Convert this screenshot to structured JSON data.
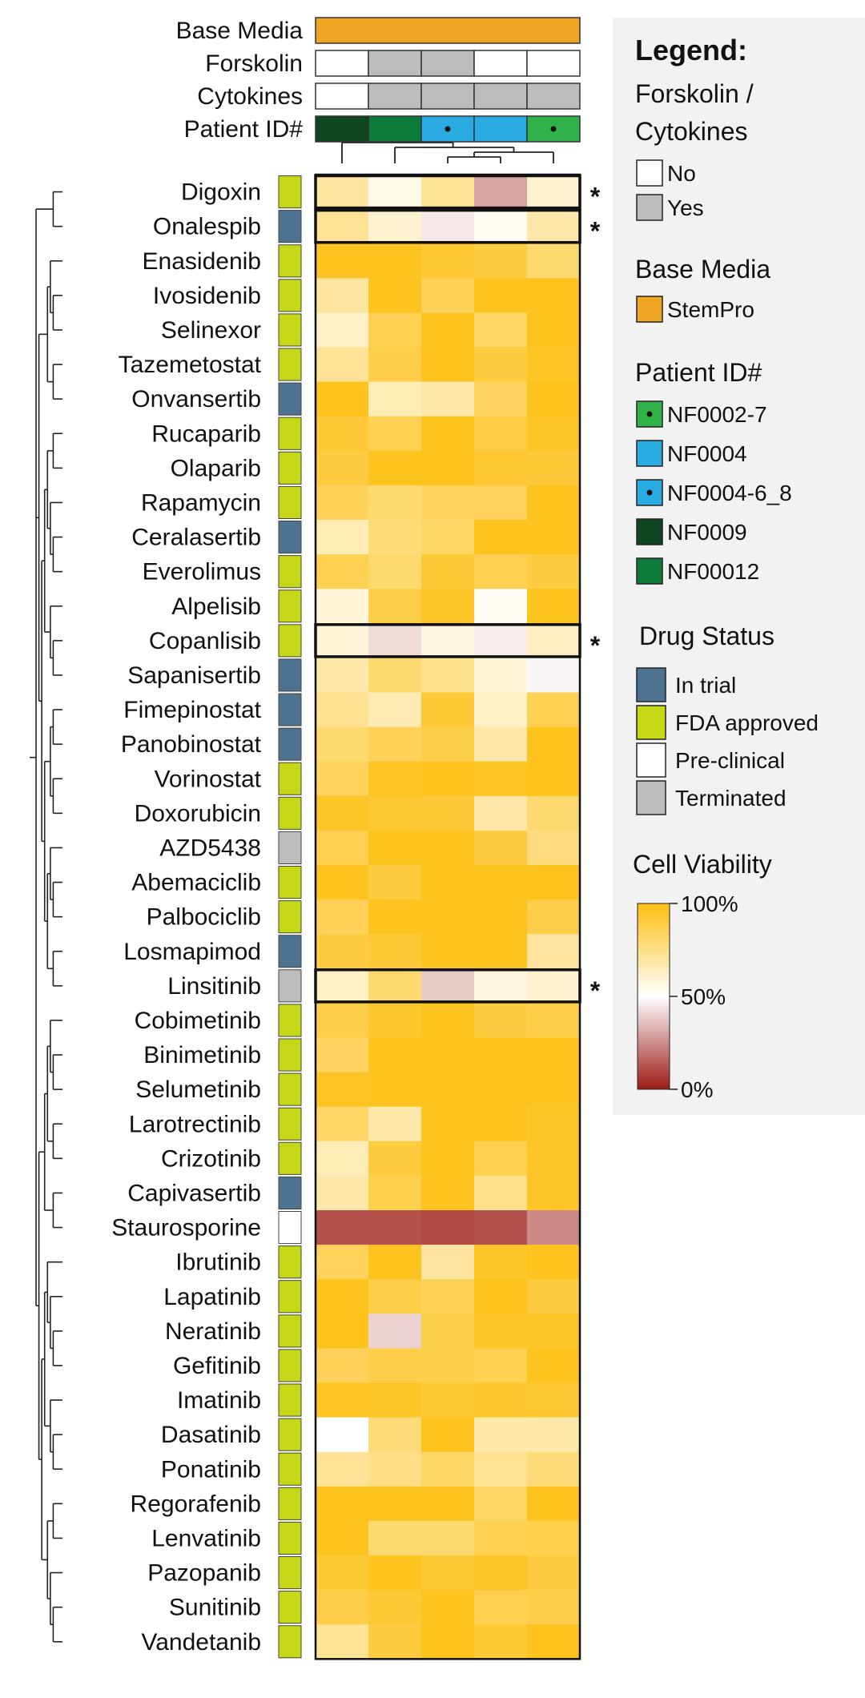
{
  "chart_data": {
    "type": "heatmap",
    "title": "",
    "color_scale": {
      "title": "Cell Viability",
      "ticks": [
        "100%",
        "50%",
        "0%"
      ],
      "stops": [
        {
          "v": 0,
          "color": "#9c1c16"
        },
        {
          "v": 50,
          "color": "#ffffff"
        },
        {
          "v": 100,
          "color": "#fdbf10"
        }
      ]
    },
    "annotation_rows": [
      {
        "label": "Base Media",
        "values": [
          "StemPro",
          "StemPro",
          "StemPro",
          "StemPro",
          "StemPro"
        ]
      },
      {
        "label": "Forskolin",
        "values": [
          "No",
          "Yes",
          "Yes",
          "No",
          "No"
        ]
      },
      {
        "label": "Cytokines",
        "values": [
          "No",
          "Yes",
          "Yes",
          "Yes",
          "Yes"
        ]
      },
      {
        "label": "Patient ID#",
        "values": [
          "NF0009",
          "NF00012",
          "NF0004-6_8",
          "NF0004",
          "NF0002-7"
        ]
      }
    ],
    "drugs": [
      "Digoxin",
      "Onalespib",
      "Enasidenib",
      "Ivosidenib",
      "Selinexor",
      "Tazemetostat",
      "Onvansertib",
      "Rucaparib",
      "Olaparib",
      "Rapamycin",
      "Ceralasertib",
      "Everolimus",
      "Alpelisib",
      "Copanlisib",
      "Sapanisertib",
      "Fimepinostat",
      "Panobinostat",
      "Vorinostat",
      "Doxorubicin",
      "AZD5438",
      "Abemaciclib",
      "Palbociclib",
      "Losmapimod",
      "Linsitinib",
      "Cobimetinib",
      "Binimetinib",
      "Selumetinib",
      "Larotrectinib",
      "Crizotinib",
      "Capivasertib",
      "Staurosporine",
      "Ibrutinib",
      "Lapatinib",
      "Neratinib",
      "Gefitinib",
      "Imatinib",
      "Dasatinib",
      "Ponatinib",
      "Regorafenib",
      "Lenvatinib",
      "Pazopanib",
      "Sunitinib",
      "Vandetanib"
    ],
    "drug_status": [
      "FDA approved",
      "In trial",
      "FDA approved",
      "FDA approved",
      "FDA approved",
      "FDA approved",
      "In trial",
      "FDA approved",
      "FDA approved",
      "FDA approved",
      "In trial",
      "FDA approved",
      "FDA approved",
      "FDA approved",
      "In trial",
      "In trial",
      "In trial",
      "FDA approved",
      "FDA approved",
      "Terminated",
      "FDA approved",
      "FDA approved",
      "In trial",
      "Terminated",
      "FDA approved",
      "FDA approved",
      "FDA approved",
      "FDA approved",
      "FDA approved",
      "In trial",
      "Pre-clinical",
      "FDA approved",
      "FDA approved",
      "FDA approved",
      "FDA approved",
      "FDA approved",
      "FDA approved",
      "FDA approved",
      "FDA approved",
      "FDA approved",
      "FDA approved",
      "FDA approved",
      "FDA approved"
    ],
    "values": [
      [
        70,
        55,
        72,
        30,
        60
      ],
      [
        72,
        60,
        45,
        52,
        68
      ],
      [
        97,
        97,
        93,
        90,
        80
      ],
      [
        70,
        97,
        85,
        97,
        97
      ],
      [
        62,
        86,
        97,
        82,
        97
      ],
      [
        72,
        88,
        97,
        90,
        96
      ],
      [
        97,
        65,
        68,
        83,
        97
      ],
      [
        92,
        86,
        97,
        89,
        95
      ],
      [
        90,
        97,
        97,
        93,
        92
      ],
      [
        85,
        80,
        84,
        84,
        97
      ],
      [
        65,
        78,
        82,
        97,
        97
      ],
      [
        86,
        80,
        92,
        86,
        90
      ],
      [
        58,
        88,
        95,
        52,
        97
      ],
      [
        58,
        42,
        56,
        46,
        63
      ],
      [
        68,
        80,
        74,
        58,
        48
      ],
      [
        73,
        66,
        92,
        62,
        86
      ],
      [
        80,
        85,
        88,
        68,
        97
      ],
      [
        84,
        96,
        97,
        96,
        97
      ],
      [
        95,
        93,
        92,
        68,
        80
      ],
      [
        86,
        97,
        97,
        90,
        77
      ],
      [
        97,
        90,
        97,
        97,
        97
      ],
      [
        85,
        97,
        97,
        97,
        88
      ],
      [
        90,
        92,
        97,
        97,
        70
      ],
      [
        62,
        80,
        38,
        56,
        60
      ],
      [
        88,
        94,
        97,
        90,
        88
      ],
      [
        83,
        97,
        97,
        97,
        97
      ],
      [
        96,
        97,
        97,
        97,
        97
      ],
      [
        82,
        68,
        97,
        97,
        95
      ],
      [
        65,
        90,
        97,
        86,
        95
      ],
      [
        68,
        87,
        97,
        74,
        95
      ],
      [
        12,
        12,
        10,
        12,
        24
      ],
      [
        84,
        97,
        70,
        95,
        97
      ],
      [
        97,
        88,
        85,
        97,
        90
      ],
      [
        97,
        40,
        88,
        95,
        95
      ],
      [
        85,
        88,
        88,
        86,
        97
      ],
      [
        96,
        95,
        92,
        94,
        93
      ],
      [
        50,
        78,
        97,
        68,
        68
      ],
      [
        72,
        75,
        82,
        72,
        78
      ],
      [
        97,
        97,
        97,
        82,
        97
      ],
      [
        97,
        80,
        80,
        86,
        87
      ],
      [
        92,
        97,
        92,
        95,
        90
      ],
      [
        88,
        92,
        97,
        86,
        88
      ],
      [
        72,
        90,
        97,
        92,
        97
      ]
    ],
    "highlighted_rows": [
      "Digoxin",
      "Onalespib",
      "Copanlisib",
      "Linsitinib"
    ],
    "highlight_marker": "*",
    "colors": {
      "base_media": "#eea523",
      "forskolin_no": "#ffffff",
      "forskolin_yes": "#bdbdbd",
      "status_in_trial": "#4e7391",
      "status_fda": "#c6d718",
      "status_preclinical": "#ffffff",
      "status_terminated": "#bdbdbd",
      "NF0002-7": "#30b24a",
      "NF0004": "#2aace2",
      "NF0004-6_8": "#2aace2",
      "NF0009": "#0f4521",
      "NF00012": "#0d7a3a"
    }
  },
  "legend": {
    "title": "Legend:",
    "sections": [
      {
        "title_lines": [
          "Forskolin /",
          "Cytokines"
        ],
        "items": [
          {
            "label": "No",
            "color": "#ffffff",
            "dot": false
          },
          {
            "label": "Yes",
            "color": "#bdbdbd",
            "dot": false
          }
        ]
      },
      {
        "title_lines": [
          "Base Media"
        ],
        "items": [
          {
            "label": "StemPro",
            "color": "#eea523",
            "dot": false
          }
        ]
      },
      {
        "title_lines": [
          "Patient ID#"
        ],
        "items": [
          {
            "label": "NF0002-7",
            "color": "#30b24a",
            "dot": true
          },
          {
            "label": "NF0004",
            "color": "#2aace2",
            "dot": false
          },
          {
            "label": "NF0004-6_8",
            "color": "#2aace2",
            "dot": true
          },
          {
            "label": "NF0009",
            "color": "#0f4521",
            "dot": false
          },
          {
            "label": "NF00012",
            "color": "#0d7a3a",
            "dot": false
          }
        ]
      },
      {
        "title_lines": [
          "Drug Status"
        ],
        "items": [
          {
            "label": "In trial",
            "color": "#4e7391",
            "dot": false
          },
          {
            "label": "FDA approved",
            "color": "#c6d718",
            "dot": false
          },
          {
            "label": "Pre-clinical",
            "color": "#ffffff",
            "dot": false
          },
          {
            "label": "Terminated",
            "color": "#bdbdbd",
            "dot": false
          }
        ]
      }
    ]
  }
}
